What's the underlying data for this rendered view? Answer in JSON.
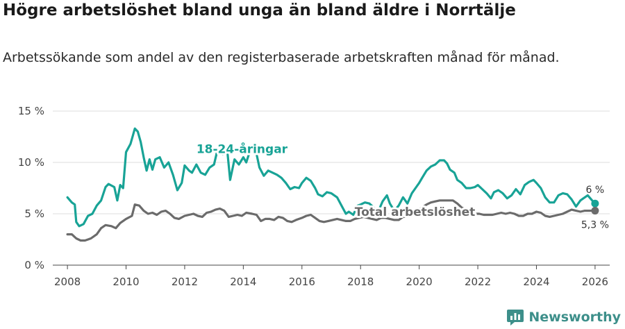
{
  "title": "Högre arbetslöshet bland unga än bland äldre i Norrtälje",
  "subtitle": "Arbetssökande som andel av den registerbaserade arbetskraften månad för månad.",
  "brand": {
    "name": "Newsworthy",
    "icon": "newsworthy-logo-icon"
  },
  "colors": {
    "youth": "#18a396",
    "total": "#6b6b6b",
    "grid": "#dddddd"
  },
  "chart_data": {
    "type": "line",
    "title": "Högre arbetslöshet bland unga än bland äldre i Norrtälje",
    "xlabel": "",
    "ylabel": "",
    "xlim": [
      2007.5,
      2026.5
    ],
    "ylim": [
      0,
      15
    ],
    "y_ticks": [
      0,
      5,
      10,
      15
    ],
    "y_tick_labels": [
      "0 %",
      "5 %",
      "10 %",
      "15 %"
    ],
    "x_ticks": [
      2008,
      2010,
      2012,
      2014,
      2016,
      2018,
      2020,
      2022,
      2024,
      2026
    ],
    "x_tick_labels": [
      "2008",
      "2010",
      "2012",
      "2014",
      "2016",
      "2018",
      "2020",
      "2022",
      "2024",
      "2026"
    ],
    "grid": true,
    "series": [
      {
        "name": "18-24-åringar",
        "label": "18-24-åringar",
        "end_label": "6 %",
        "points": [
          [
            2008.0,
            6.6
          ],
          [
            2008.15,
            6.1
          ],
          [
            2008.25,
            5.9
          ],
          [
            2008.3,
            4.2
          ],
          [
            2008.4,
            3.8
          ],
          [
            2008.55,
            4.0
          ],
          [
            2008.7,
            4.8
          ],
          [
            2008.85,
            5.0
          ],
          [
            2009.0,
            5.8
          ],
          [
            2009.15,
            6.3
          ],
          [
            2009.3,
            7.6
          ],
          [
            2009.4,
            7.9
          ],
          [
            2009.6,
            7.6
          ],
          [
            2009.7,
            6.3
          ],
          [
            2009.8,
            7.8
          ],
          [
            2009.9,
            7.5
          ],
          [
            2010.0,
            11.0
          ],
          [
            2010.15,
            11.8
          ],
          [
            2010.3,
            13.3
          ],
          [
            2010.4,
            13.0
          ],
          [
            2010.5,
            12.0
          ],
          [
            2010.6,
            10.5
          ],
          [
            2010.7,
            9.2
          ],
          [
            2010.8,
            10.3
          ],
          [
            2010.9,
            9.3
          ],
          [
            2011.0,
            10.3
          ],
          [
            2011.15,
            10.5
          ],
          [
            2011.3,
            9.5
          ],
          [
            2011.45,
            10.0
          ],
          [
            2011.6,
            8.8
          ],
          [
            2011.75,
            7.3
          ],
          [
            2011.9,
            8.0
          ],
          [
            2012.0,
            9.7
          ],
          [
            2012.15,
            9.2
          ],
          [
            2012.25,
            9.0
          ],
          [
            2012.4,
            9.8
          ],
          [
            2012.55,
            9.0
          ],
          [
            2012.7,
            8.8
          ],
          [
            2012.85,
            9.5
          ],
          [
            2013.0,
            9.8
          ],
          [
            2013.1,
            11.0
          ],
          [
            2013.2,
            11.3
          ],
          [
            2013.3,
            10.8
          ],
          [
            2013.45,
            11.2
          ],
          [
            2013.55,
            8.3
          ],
          [
            2013.7,
            10.3
          ],
          [
            2013.85,
            9.8
          ],
          [
            2014.0,
            10.5
          ],
          [
            2014.1,
            10.0
          ],
          [
            2014.25,
            11.3
          ],
          [
            2014.4,
            11.5
          ],
          [
            2014.55,
            9.5
          ],
          [
            2014.7,
            8.7
          ],
          [
            2014.85,
            9.2
          ],
          [
            2015.0,
            9.0
          ],
          [
            2015.15,
            8.8
          ],
          [
            2015.3,
            8.5
          ],
          [
            2015.45,
            8.0
          ],
          [
            2015.6,
            7.4
          ],
          [
            2015.75,
            7.6
          ],
          [
            2015.9,
            7.5
          ],
          [
            2016.0,
            8.0
          ],
          [
            2016.15,
            8.5
          ],
          [
            2016.3,
            8.2
          ],
          [
            2016.45,
            7.5
          ],
          [
            2016.55,
            6.9
          ],
          [
            2016.7,
            6.7
          ],
          [
            2016.85,
            7.1
          ],
          [
            2017.0,
            7.0
          ],
          [
            2017.2,
            6.6
          ],
          [
            2017.35,
            5.8
          ],
          [
            2017.5,
            5.0
          ],
          [
            2017.6,
            5.2
          ],
          [
            2017.75,
            4.9
          ],
          [
            2017.9,
            5.8
          ],
          [
            2018.0,
            5.9
          ],
          [
            2018.15,
            6.1
          ],
          [
            2018.3,
            6.0
          ],
          [
            2018.45,
            5.6
          ],
          [
            2018.6,
            5.2
          ],
          [
            2018.75,
            6.2
          ],
          [
            2018.9,
            6.8
          ],
          [
            2019.0,
            6.0
          ],
          [
            2019.15,
            5.3
          ],
          [
            2019.3,
            5.8
          ],
          [
            2019.45,
            6.6
          ],
          [
            2019.6,
            6.0
          ],
          [
            2019.75,
            7.0
          ],
          [
            2019.9,
            7.6
          ],
          [
            2020.0,
            8.0
          ],
          [
            2020.1,
            8.5
          ],
          [
            2020.25,
            9.2
          ],
          [
            2020.4,
            9.6
          ],
          [
            2020.55,
            9.8
          ],
          [
            2020.7,
            10.2
          ],
          [
            2020.85,
            10.2
          ],
          [
            2020.95,
            9.9
          ],
          [
            2021.05,
            9.3
          ],
          [
            2021.2,
            9.0
          ],
          [
            2021.3,
            8.3
          ],
          [
            2021.45,
            8.0
          ],
          [
            2021.6,
            7.5
          ],
          [
            2021.75,
            7.5
          ],
          [
            2021.9,
            7.6
          ],
          [
            2022.0,
            7.8
          ],
          [
            2022.15,
            7.4
          ],
          [
            2022.3,
            7.0
          ],
          [
            2022.45,
            6.5
          ],
          [
            2022.55,
            7.1
          ],
          [
            2022.7,
            7.3
          ],
          [
            2022.85,
            7.0
          ],
          [
            2023.0,
            6.5
          ],
          [
            2023.15,
            6.8
          ],
          [
            2023.3,
            7.4
          ],
          [
            2023.45,
            6.9
          ],
          [
            2023.6,
            7.8
          ],
          [
            2023.75,
            8.1
          ],
          [
            2023.9,
            8.3
          ],
          [
            2024.0,
            8.0
          ],
          [
            2024.15,
            7.5
          ],
          [
            2024.3,
            6.6
          ],
          [
            2024.45,
            6.1
          ],
          [
            2024.6,
            6.1
          ],
          [
            2024.75,
            6.8
          ],
          [
            2024.9,
            7.0
          ],
          [
            2025.05,
            6.9
          ],
          [
            2025.2,
            6.4
          ],
          [
            2025.35,
            5.7
          ],
          [
            2025.5,
            6.3
          ],
          [
            2025.6,
            6.5
          ],
          [
            2025.75,
            6.8
          ],
          [
            2025.9,
            6.3
          ],
          [
            2026.0,
            6.0
          ]
        ]
      },
      {
        "name": "Total arbetslöshet",
        "label": "Total arbetslöshet",
        "end_label": "5,3 %",
        "points": [
          [
            2008.0,
            3.0
          ],
          [
            2008.15,
            3.0
          ],
          [
            2008.3,
            2.6
          ],
          [
            2008.45,
            2.4
          ],
          [
            2008.6,
            2.4
          ],
          [
            2008.8,
            2.6
          ],
          [
            2009.0,
            3.0
          ],
          [
            2009.15,
            3.6
          ],
          [
            2009.3,
            3.9
          ],
          [
            2009.5,
            3.8
          ],
          [
            2009.65,
            3.6
          ],
          [
            2009.8,
            4.1
          ],
          [
            2010.0,
            4.5
          ],
          [
            2010.2,
            4.8
          ],
          [
            2010.3,
            5.9
          ],
          [
            2010.45,
            5.8
          ],
          [
            2010.6,
            5.3
          ],
          [
            2010.75,
            5.0
          ],
          [
            2010.9,
            5.1
          ],
          [
            2011.05,
            4.9
          ],
          [
            2011.2,
            5.2
          ],
          [
            2011.35,
            5.3
          ],
          [
            2011.5,
            5.0
          ],
          [
            2011.65,
            4.6
          ],
          [
            2011.8,
            4.5
          ],
          [
            2012.0,
            4.8
          ],
          [
            2012.15,
            4.9
          ],
          [
            2012.3,
            5.0
          ],
          [
            2012.45,
            4.8
          ],
          [
            2012.6,
            4.7
          ],
          [
            2012.75,
            5.1
          ],
          [
            2012.9,
            5.2
          ],
          [
            2013.05,
            5.4
          ],
          [
            2013.2,
            5.5
          ],
          [
            2013.35,
            5.3
          ],
          [
            2013.5,
            4.7
          ],
          [
            2013.65,
            4.8
          ],
          [
            2013.8,
            4.9
          ],
          [
            2013.95,
            4.8
          ],
          [
            2014.1,
            5.1
          ],
          [
            2014.3,
            5.0
          ],
          [
            2014.45,
            4.9
          ],
          [
            2014.6,
            4.3
          ],
          [
            2014.75,
            4.5
          ],
          [
            2014.9,
            4.5
          ],
          [
            2015.05,
            4.4
          ],
          [
            2015.2,
            4.7
          ],
          [
            2015.35,
            4.6
          ],
          [
            2015.5,
            4.3
          ],
          [
            2015.65,
            4.2
          ],
          [
            2015.8,
            4.4
          ],
          [
            2016.0,
            4.6
          ],
          [
            2016.15,
            4.8
          ],
          [
            2016.3,
            4.9
          ],
          [
            2016.45,
            4.6
          ],
          [
            2016.6,
            4.3
          ],
          [
            2016.75,
            4.2
          ],
          [
            2016.9,
            4.3
          ],
          [
            2017.05,
            4.4
          ],
          [
            2017.2,
            4.5
          ],
          [
            2017.35,
            4.4
          ],
          [
            2017.5,
            4.3
          ],
          [
            2017.65,
            4.3
          ],
          [
            2017.8,
            4.5
          ],
          [
            2017.95,
            4.6
          ],
          [
            2018.1,
            4.7
          ],
          [
            2018.25,
            4.6
          ],
          [
            2018.4,
            4.5
          ],
          [
            2018.55,
            4.4
          ],
          [
            2018.7,
            4.6
          ],
          [
            2018.85,
            4.6
          ],
          [
            2019.0,
            4.5
          ],
          [
            2019.15,
            4.4
          ],
          [
            2019.3,
            4.4
          ],
          [
            2019.45,
            4.7
          ],
          [
            2019.6,
            4.7
          ],
          [
            2019.75,
            5.0
          ],
          [
            2019.9,
            5.3
          ],
          [
            2020.1,
            5.6
          ],
          [
            2020.25,
            5.9
          ],
          [
            2020.4,
            6.1
          ],
          [
            2020.55,
            6.2
          ],
          [
            2020.7,
            6.3
          ],
          [
            2020.85,
            6.3
          ],
          [
            2021.0,
            6.3
          ],
          [
            2021.15,
            6.3
          ],
          [
            2021.3,
            6.0
          ],
          [
            2021.45,
            5.6
          ],
          [
            2021.6,
            5.4
          ],
          [
            2021.75,
            5.3
          ],
          [
            2021.9,
            5.0
          ],
          [
            2022.05,
            5.0
          ],
          [
            2022.2,
            4.9
          ],
          [
            2022.35,
            4.9
          ],
          [
            2022.5,
            4.9
          ],
          [
            2022.65,
            5.0
          ],
          [
            2022.8,
            5.1
          ],
          [
            2022.95,
            5.0
          ],
          [
            2023.1,
            5.1
          ],
          [
            2023.25,
            5.0
          ],
          [
            2023.4,
            4.8
          ],
          [
            2023.55,
            4.8
          ],
          [
            2023.7,
            5.0
          ],
          [
            2023.85,
            5.0
          ],
          [
            2024.0,
            5.2
          ],
          [
            2024.15,
            5.1
          ],
          [
            2024.3,
            4.8
          ],
          [
            2024.45,
            4.7
          ],
          [
            2024.6,
            4.8
          ],
          [
            2024.75,
            4.9
          ],
          [
            2024.9,
            5.0
          ],
          [
            2025.05,
            5.2
          ],
          [
            2025.2,
            5.4
          ],
          [
            2025.35,
            5.3
          ],
          [
            2025.5,
            5.2
          ],
          [
            2025.65,
            5.3
          ],
          [
            2025.8,
            5.3
          ],
          [
            2026.0,
            5.3
          ]
        ]
      }
    ]
  }
}
